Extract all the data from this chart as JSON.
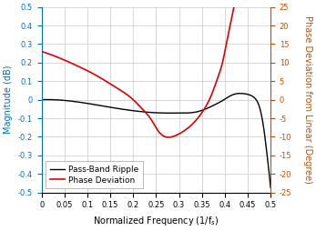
{
  "title": "",
  "xlabel": "Normalized Frequency (1/f$_s$)",
  "ylabel_left": "Magnitude (dB)",
  "ylabel_right": "Phase Deviation from Linear (Degree)",
  "xlim": [
    0,
    0.5
  ],
  "ylim_left": [
    -0.5,
    0.5
  ],
  "ylim_right": [
    -25,
    25
  ],
  "yticks_left": [
    -0.5,
    -0.4,
    -0.3,
    -0.2,
    -0.1,
    0.0,
    0.1,
    0.2,
    0.3,
    0.4,
    0.5
  ],
  "yticks_right": [
    -25,
    -20,
    -15,
    -10,
    -5,
    0,
    5,
    10,
    15,
    20,
    25
  ],
  "xticks": [
    0,
    0.05,
    0.1,
    0.15,
    0.2,
    0.25,
    0.3,
    0.35,
    0.4,
    0.45,
    0.5
  ],
  "black_line_color": "#000000",
  "red_line_color": "#dd0000",
  "grid_color": "#c8c8c8",
  "background_color": "#ffffff",
  "legend_labels": [
    "Pass-Band Ripple",
    "Phase Deviation"
  ],
  "left_label_color": "#0070c0",
  "right_label_color": "#c05000",
  "font_size": 7,
  "legend_fontsize": 6.5,
  "pb_xp": [
    0,
    0.04,
    0.1,
    0.16,
    0.22,
    0.27,
    0.3,
    0.34,
    0.38,
    0.395,
    0.41,
    0.425,
    0.44,
    0.455,
    0.465,
    0.472,
    0.479,
    0.486,
    0.492,
    0.497,
    0.5
  ],
  "pb_yp": [
    0.0,
    -0.002,
    -0.02,
    -0.045,
    -0.065,
    -0.072,
    -0.072,
    -0.065,
    -0.025,
    -0.005,
    0.018,
    0.032,
    0.033,
    0.025,
    0.01,
    -0.015,
    -0.07,
    -0.17,
    -0.29,
    -0.4,
    -0.475
  ],
  "ph_xp": [
    0,
    0.04,
    0.08,
    0.12,
    0.16,
    0.2,
    0.22,
    0.24,
    0.255,
    0.27,
    0.29,
    0.31,
    0.33,
    0.35,
    0.37,
    0.385,
    0.395,
    0.405,
    0.415,
    0.42
  ],
  "ph_yp": [
    13.0,
    11.2,
    9.0,
    6.5,
    3.5,
    0.0,
    -2.5,
    -5.5,
    -8.5,
    -10.0,
    -9.8,
    -8.5,
    -6.5,
    -3.5,
    1.0,
    6.0,
    10.0,
    16.0,
    22.0,
    25.0
  ]
}
